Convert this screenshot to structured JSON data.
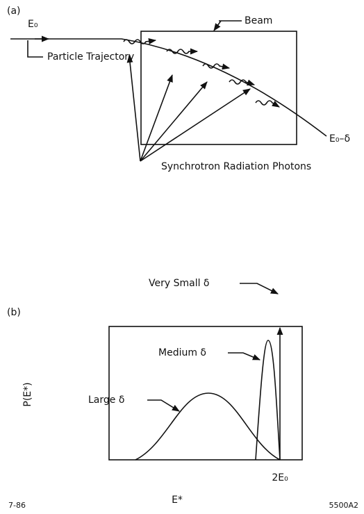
{
  "panel_a": {
    "label": "(a)",
    "beam": "Beam",
    "e0": "E₀",
    "trajectory": "Particle Trajectory",
    "e0_minus": "E₀–δ",
    "photons": "Synchrotron Radiation Photons"
  },
  "panel_b": {
    "label": "(b)",
    "very_small": "Very Small δ",
    "medium": "Medium δ",
    "large": "Large δ",
    "y_label": "P(E*)",
    "x_tick": "2E₀",
    "x_label": "E*"
  },
  "footer": {
    "date": "7-86",
    "id": "5500A2"
  }
}
